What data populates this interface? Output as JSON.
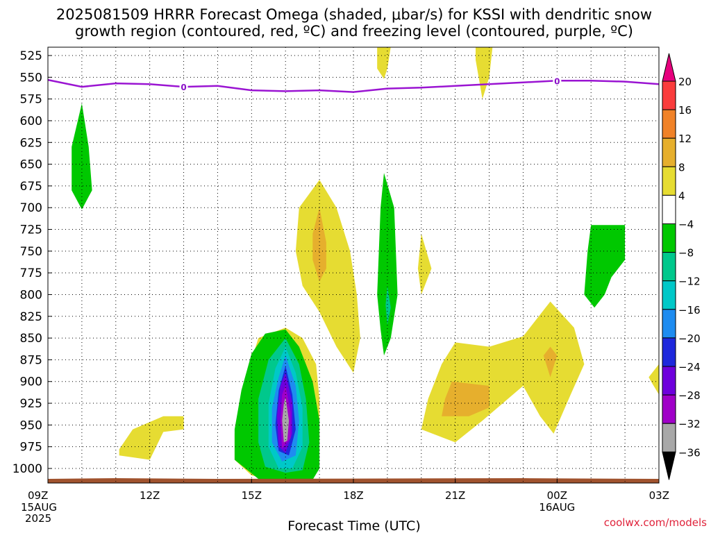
{
  "title_line1": "2025081509 HRRR Forecast Omega (shaded, μbar/s) for KSSI with dendritic snow",
  "title_line2": "growth region (contoured, red, ºC) and freezing level (contoured, purple, ºC)",
  "credit": "coolwx.com/models",
  "chart_data": {
    "type": "area",
    "xlabel": "Forecast Time (UTC)",
    "x_range_hours": [
      0,
      18
    ],
    "y_range_hpa": [
      515,
      1020
    ],
    "y_ticks": [
      525,
      550,
      575,
      600,
      625,
      650,
      675,
      700,
      725,
      750,
      775,
      800,
      825,
      850,
      875,
      900,
      925,
      950,
      975,
      1000
    ],
    "x_ticks": [
      {
        "h": 0,
        "label": "09Z",
        "sub1": "15AUG",
        "sub2": "2025"
      },
      {
        "h": 3,
        "label": "12Z",
        "sub1": "",
        "sub2": ""
      },
      {
        "h": 6,
        "label": "15Z",
        "sub1": "",
        "sub2": ""
      },
      {
        "h": 9,
        "label": "18Z",
        "sub1": "",
        "sub2": ""
      },
      {
        "h": 12,
        "label": "21Z",
        "sub1": "",
        "sub2": ""
      },
      {
        "h": 15,
        "label": "00Z",
        "sub1": "16AUG",
        "sub2": ""
      },
      {
        "h": 18,
        "label": "03Z",
        "sub1": "",
        "sub2": ""
      }
    ],
    "grid": true,
    "colorbar": {
      "boundaries": [
        -36,
        -32,
        -28,
        -24,
        -20,
        -16,
        -12,
        -8,
        -4,
        4,
        8,
        12,
        16,
        20
      ],
      "colors": [
        "#000000",
        "#a8a8a8",
        "#a000c8",
        "#6e00dc",
        "#1e28dc",
        "#1e8cf0",
        "#00c8c8",
        "#00c88c",
        "#00c800",
        "#ffffff",
        "#e6dc32",
        "#e6af2d",
        "#f08228",
        "#fa3c3c",
        "#e6007d"
      ]
    },
    "freezing_level": {
      "label": "0",
      "hours": [
        0,
        1,
        2,
        3,
        4,
        5,
        6,
        7,
        8,
        9,
        10,
        11,
        12,
        13,
        14,
        15,
        16,
        17,
        18
      ],
      "pressure_hpa": [
        553,
        561,
        557,
        558,
        561,
        560,
        565,
        566,
        565,
        567,
        563,
        562,
        560,
        558,
        556,
        554,
        554,
        555,
        558
      ],
      "label_hours": [
        4,
        15
      ]
    },
    "omega_regions": [
      {
        "value": -6,
        "points": [
          [
            1.0,
            580
          ],
          [
            1.2,
            630
          ],
          [
            1.3,
            680
          ],
          [
            1.0,
            702
          ],
          [
            0.7,
            680
          ],
          [
            0.7,
            630
          ]
        ]
      },
      {
        "value": 6,
        "points": [
          [
            2.1,
            978
          ],
          [
            2.5,
            955
          ],
          [
            3.4,
            940
          ],
          [
            4.0,
            940
          ],
          [
            4.0,
            955
          ],
          [
            3.4,
            958
          ],
          [
            3.0,
            990
          ],
          [
            2.1,
            985
          ]
        ]
      },
      {
        "value": 6,
        "points": [
          [
            8.0,
            668
          ],
          [
            8.5,
            700
          ],
          [
            8.9,
            750
          ],
          [
            9.1,
            800
          ],
          [
            9.2,
            850
          ],
          [
            9.0,
            890
          ],
          [
            8.5,
            860
          ],
          [
            8.0,
            820
          ],
          [
            7.5,
            790
          ],
          [
            7.3,
            750
          ],
          [
            7.4,
            700
          ]
        ]
      },
      {
        "value": 10,
        "points": [
          [
            8.0,
            700
          ],
          [
            8.2,
            740
          ],
          [
            8.2,
            770
          ],
          [
            8.0,
            785
          ],
          [
            7.8,
            760
          ],
          [
            7.8,
            730
          ]
        ]
      },
      {
        "value": 6,
        "points": [
          [
            7.0,
            838
          ],
          [
            7.5,
            850
          ],
          [
            7.9,
            880
          ],
          [
            8.0,
            920
          ],
          [
            8.0,
            970
          ],
          [
            7.8,
            1012
          ],
          [
            6.5,
            1012
          ],
          [
            6.0,
            1008
          ],
          [
            5.5,
            990
          ],
          [
            5.5,
            960
          ],
          [
            5.8,
            900
          ],
          [
            6.2,
            850
          ]
        ]
      },
      {
        "value": -6,
        "points": [
          [
            7.0,
            840
          ],
          [
            7.4,
            860
          ],
          [
            7.8,
            900
          ],
          [
            8.0,
            945
          ],
          [
            8.0,
            1000
          ],
          [
            7.8,
            1013
          ],
          [
            6.2,
            1012
          ],
          [
            5.5,
            990
          ],
          [
            5.5,
            955
          ],
          [
            5.7,
            910
          ],
          [
            6.0,
            868
          ],
          [
            6.4,
            845
          ]
        ]
      },
      {
        "value": -10,
        "points": [
          [
            7.0,
            850
          ],
          [
            7.4,
            880
          ],
          [
            7.6,
            920
          ],
          [
            7.7,
            970
          ],
          [
            7.5,
            1002
          ],
          [
            7.0,
            1005
          ],
          [
            6.4,
            998
          ],
          [
            6.2,
            970
          ],
          [
            6.2,
            920
          ],
          [
            6.5,
            875
          ]
        ]
      },
      {
        "value": -14,
        "points": [
          [
            7.0,
            860
          ],
          [
            7.3,
            890
          ],
          [
            7.5,
            930
          ],
          [
            7.5,
            975
          ],
          [
            7.2,
            1000
          ],
          [
            6.8,
            1000
          ],
          [
            6.5,
            975
          ],
          [
            6.5,
            925
          ],
          [
            6.7,
            885
          ]
        ]
      },
      {
        "value": -18,
        "points": [
          [
            7.0,
            870
          ],
          [
            7.3,
            905
          ],
          [
            7.4,
            945
          ],
          [
            7.3,
            985
          ],
          [
            6.9,
            992
          ],
          [
            6.6,
            970
          ],
          [
            6.6,
            930
          ],
          [
            6.8,
            895
          ]
        ]
      },
      {
        "value": -22,
        "points": [
          [
            7.0,
            882
          ],
          [
            7.2,
            915
          ],
          [
            7.3,
            955
          ],
          [
            7.1,
            985
          ],
          [
            6.8,
            980
          ],
          [
            6.7,
            950
          ],
          [
            6.8,
            910
          ]
        ]
      },
      {
        "value": -26,
        "points": [
          [
            7.0,
            890
          ],
          [
            7.2,
            925
          ],
          [
            7.2,
            960
          ],
          [
            7.0,
            982
          ],
          [
            6.8,
            975
          ],
          [
            6.75,
            940
          ],
          [
            6.85,
            905
          ]
        ]
      },
      {
        "value": -30,
        "points": [
          [
            7.0,
            905
          ],
          [
            7.15,
            935
          ],
          [
            7.15,
            965
          ],
          [
            6.9,
            977
          ],
          [
            6.85,
            945
          ],
          [
            6.9,
            915
          ]
        ]
      },
      {
        "value": -34,
        "points": [
          [
            7.0,
            918
          ],
          [
            7.1,
            945
          ],
          [
            7.05,
            968
          ],
          [
            6.95,
            970
          ],
          [
            6.9,
            945
          ],
          [
            6.95,
            925
          ]
        ]
      },
      {
        "value": -6,
        "points": [
          [
            9.9,
            660
          ],
          [
            10.2,
            700
          ],
          [
            10.3,
            800
          ],
          [
            10.1,
            850
          ],
          [
            9.9,
            870
          ],
          [
            9.8,
            840
          ],
          [
            9.7,
            800
          ],
          [
            9.8,
            700
          ]
        ]
      },
      {
        "value": -10,
        "points": [
          [
            10.0,
            790
          ],
          [
            10.1,
            815
          ],
          [
            10.0,
            835
          ],
          [
            9.95,
            812
          ]
        ]
      },
      {
        "value": 6,
        "points": [
          [
            11.0,
            730
          ],
          [
            11.3,
            770
          ],
          [
            11.0,
            800
          ],
          [
            10.9,
            770
          ]
        ]
      },
      {
        "value": 6,
        "points": [
          [
            12.0,
            855
          ],
          [
            13.0,
            860
          ],
          [
            14.0,
            848
          ],
          [
            14.8,
            808
          ],
          [
            15.5,
            838
          ],
          [
            15.8,
            880
          ],
          [
            15.4,
            915
          ],
          [
            14.9,
            960
          ],
          [
            14.5,
            940
          ],
          [
            14.0,
            905
          ],
          [
            12.8,
            945
          ],
          [
            12.0,
            970
          ],
          [
            11.0,
            955
          ],
          [
            11.2,
            920
          ],
          [
            11.6,
            880
          ]
        ]
      },
      {
        "value": 10,
        "points": [
          [
            11.9,
            900
          ],
          [
            13.0,
            905
          ],
          [
            13.0,
            930
          ],
          [
            12.4,
            940
          ],
          [
            11.6,
            940
          ],
          [
            11.7,
            920
          ]
        ]
      },
      {
        "value": 10,
        "points": [
          [
            14.8,
            860
          ],
          [
            15.0,
            870
          ],
          [
            14.8,
            895
          ],
          [
            14.6,
            870
          ]
        ]
      },
      {
        "value": -6,
        "points": [
          [
            16.0,
            720
          ],
          [
            17.0,
            720
          ],
          [
            17.0,
            760
          ],
          [
            16.6,
            780
          ],
          [
            16.4,
            800
          ],
          [
            16.1,
            815
          ],
          [
            15.8,
            800
          ],
          [
            15.9,
            750
          ]
        ]
      },
      {
        "value": 6,
        "points": [
          [
            18.0,
            880
          ],
          [
            18.0,
            915
          ],
          [
            17.8,
            902
          ],
          [
            17.7,
            895
          ]
        ]
      },
      {
        "value": 6,
        "points": [
          [
            9.7,
            515
          ],
          [
            10.1,
            515
          ],
          [
            10.0,
            540
          ],
          [
            9.9,
            552
          ],
          [
            9.7,
            540
          ]
        ]
      },
      {
        "value": 6,
        "points": [
          [
            12.6,
            515
          ],
          [
            13.1,
            515
          ],
          [
            13.0,
            550
          ],
          [
            12.8,
            575
          ],
          [
            12.6,
            530
          ]
        ]
      }
    ],
    "surface_strip": {
      "color": "#a0522d"
    }
  }
}
